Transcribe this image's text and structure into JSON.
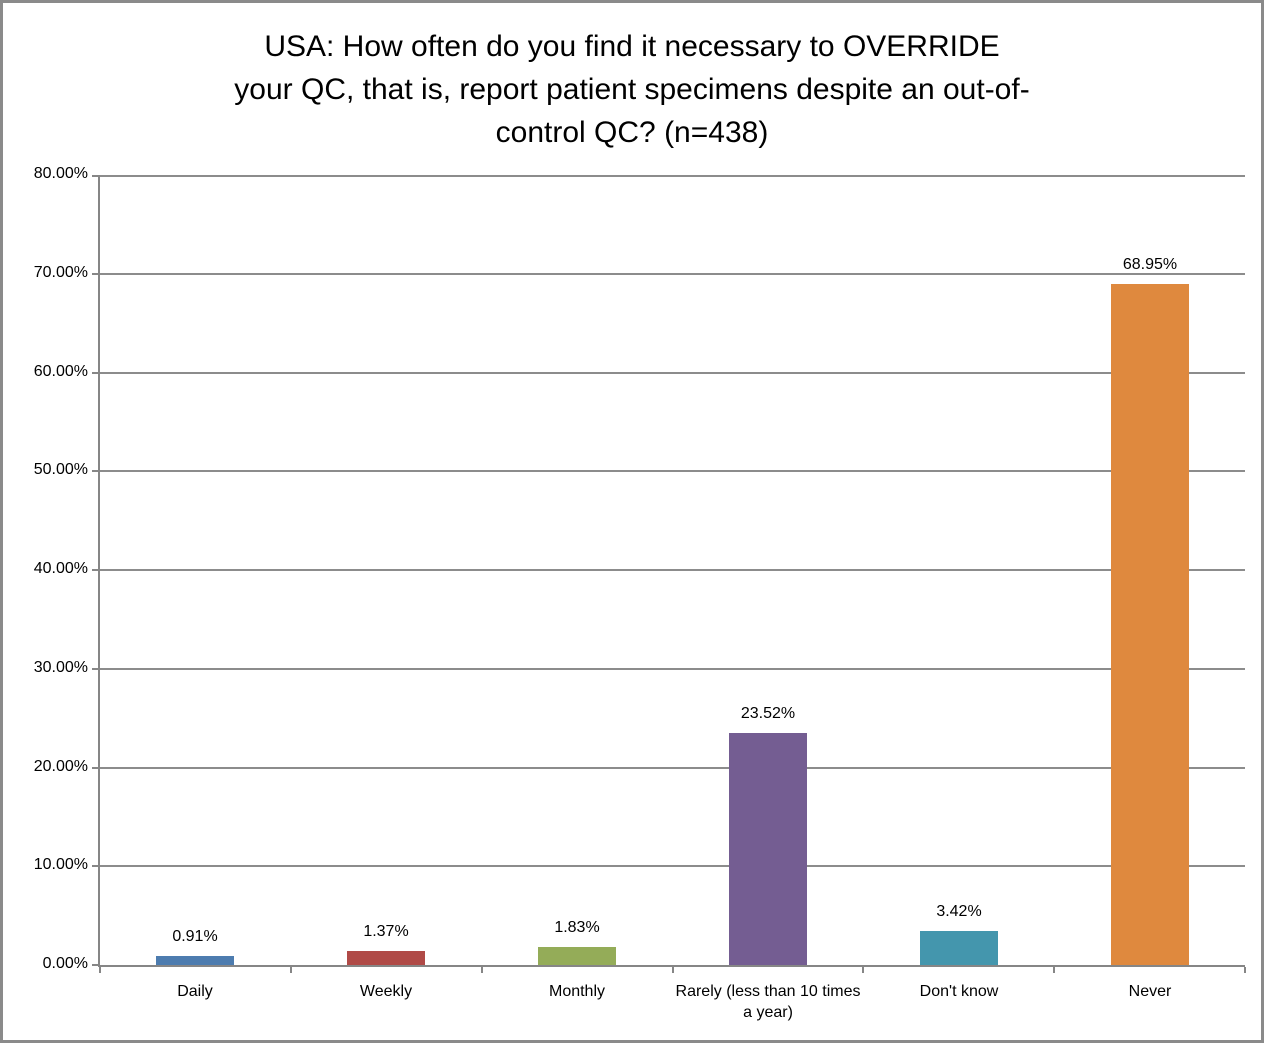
{
  "chart_data": {
    "type": "bar",
    "title": "USA: How often do you find it necessary to OVERRIDE your QC, that is, report patient specimens despite an out-of-control QC? (n=438)",
    "title_lines": [
      "USA: How often do you find it necessary to OVERRIDE",
      "your QC, that is, report patient specimens despite an out-of-",
      "control QC? (n=438)"
    ],
    "categories": [
      "Daily",
      "Weekly",
      "Monthly",
      "Rarely (less than 10 times a year)",
      "Don't know",
      "Never"
    ],
    "values": [
      0.91,
      1.37,
      1.83,
      23.52,
      3.42,
      68.95
    ],
    "data_labels": [
      "0.91%",
      "1.37%",
      "1.83%",
      "23.52%",
      "3.42%",
      "68.95%"
    ],
    "bar_colors": [
      "#4d7caf",
      "#b04a47",
      "#94ac58",
      "#745d92",
      "#4496ad",
      "#df893e"
    ],
    "xlabel": "",
    "ylabel": "",
    "ylim": [
      0,
      80
    ],
    "y_ticks": [
      {
        "label": "0.00%",
        "value": 0
      },
      {
        "label": "10.00%",
        "value": 10
      },
      {
        "label": "20.00%",
        "value": 20
      },
      {
        "label": "30.00%",
        "value": 30
      },
      {
        "label": "40.00%",
        "value": 40
      },
      {
        "label": "50.00%",
        "value": 50
      },
      {
        "label": "60.00%",
        "value": 60
      },
      {
        "label": "70.00%",
        "value": 70
      },
      {
        "label": "80.00%",
        "value": 80
      }
    ],
    "grid": true,
    "legend": false
  },
  "style_colors": {
    "background": "#ffffff",
    "frame_border": "#8a8a8a",
    "axis": "#868686",
    "gridline": "#8c8c8c",
    "text": "#000000"
  }
}
